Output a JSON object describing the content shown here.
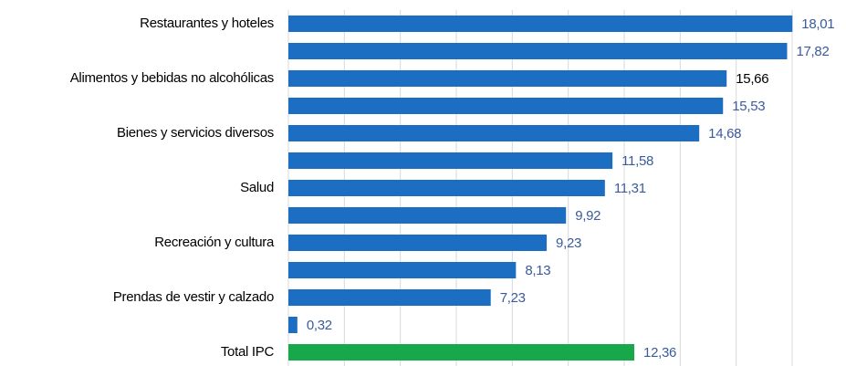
{
  "chart_data": {
    "type": "hbar",
    "categories": [
      "Restaurantes y hoteles",
      null,
      "Alimentos y bebidas no alcohólicas",
      null,
      "Bienes y servicios diversos",
      null,
      "Salud",
      null,
      "Recreación y cultura",
      null,
      "Prendas de vestir y calzado",
      null,
      "Total IPC"
    ],
    "values": [
      18.01,
      17.82,
      15.66,
      15.53,
      14.68,
      11.58,
      11.31,
      9.92,
      9.23,
      8.13,
      7.23,
      0.32,
      12.36
    ],
    "value_labels": [
      "18,01",
      "17,82",
      "15,66",
      "15,53",
      "14,68",
      "11,58",
      "11,31",
      "9,92",
      "9,23",
      "8,13",
      "7,23",
      "0,32",
      "12,36"
    ],
    "colors": [
      "#1b6ec2",
      "#1b6ec2",
      "#1b6ec2",
      "#1b6ec2",
      "#1b6ec2",
      "#1b6ec2",
      "#1b6ec2",
      "#1b6ec2",
      "#1b6ec2",
      "#1b6ec2",
      "#1b6ec2",
      "#1b6ec2",
      "#16a84a"
    ],
    "value_label_colors": [
      "#3a5c9c",
      "#3a5c9c",
      "#000000",
      "#3a5c9c",
      "#3a5c9c",
      "#3a5c9c",
      "#3a5c9c",
      "#3a5c9c",
      "#3a5c9c",
      "#3a5c9c",
      "#3a5c9c",
      "#3a5c9c",
      "#3a5c9c"
    ],
    "xlim": [
      0,
      18
    ],
    "xticks": [
      0,
      2,
      4,
      6,
      8,
      10,
      12,
      14,
      16,
      18
    ],
    "grid": true
  }
}
